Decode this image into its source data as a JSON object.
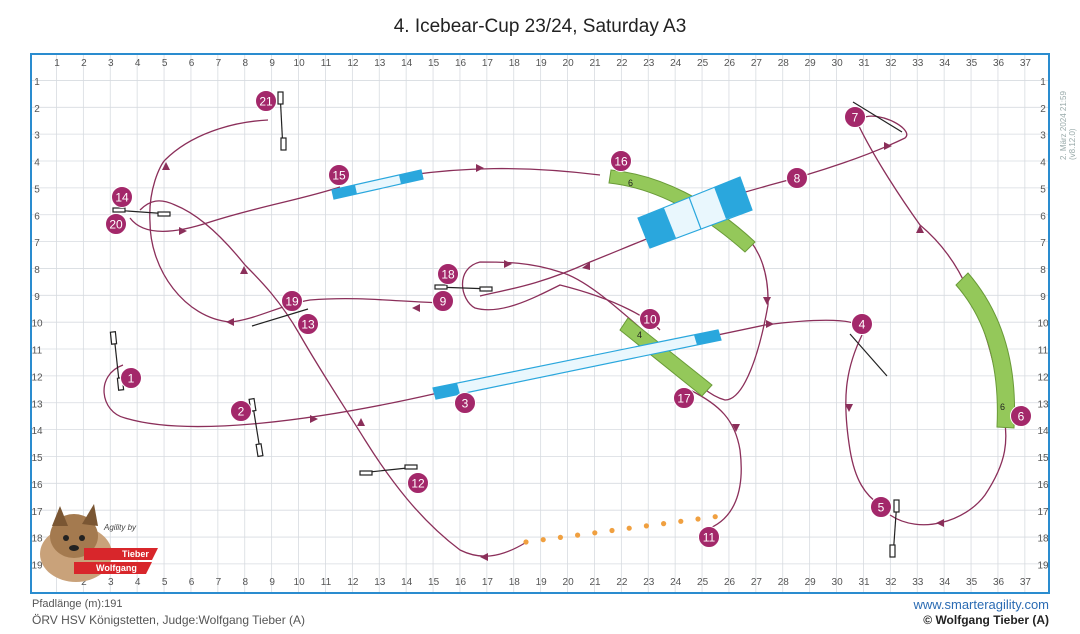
{
  "title": "4. Icebear-Cup 23/24, Saturday A3",
  "grid": {
    "cols": 37,
    "rows": 19,
    "top_labels": [
      "1",
      "2",
      "3",
      "4",
      "5",
      "6",
      "7",
      "8",
      "9",
      "10",
      "11",
      "12",
      "13",
      "14",
      "15",
      "16",
      "17",
      "18",
      "19",
      "20",
      "21",
      "22",
      "23",
      "24",
      "25",
      "26",
      "27",
      "28",
      "29",
      "30",
      "31",
      "32",
      "33",
      "34",
      "35",
      "36",
      "37"
    ],
    "side_labels": [
      "1",
      "2",
      "3",
      "4",
      "5",
      "6",
      "7",
      "8",
      "9",
      "10",
      "11",
      "12",
      "13",
      "14",
      "15",
      "16",
      "17",
      "18",
      "19"
    ]
  },
  "colors": {
    "border": "#2a8ccf",
    "grid": "#d7dbe0",
    "path": "#8b2f5a",
    "marker": "#a3286a",
    "tunnel": "#94c85a",
    "dogwalk": "#2aa7dd",
    "weave": "#f0a040"
  },
  "markers": [
    "1",
    "2",
    "3",
    "4",
    "5",
    "6",
    "7",
    "8",
    "9",
    "10",
    "11",
    "12",
    "13",
    "14",
    "15",
    "16",
    "17",
    "18",
    "19",
    "20",
    "21"
  ],
  "tunnel_labels": {
    "t16": "6",
    "t10": "4",
    "t6": "6"
  },
  "footer": {
    "path_length": "Pfadlänge (m):191",
    "club": "ÖRV HSV Königstetten, Judge:Wolfgang Tieber (A)",
    "website": "www.smarteragility.com",
    "copyright": "© Wolfgang Tieber (A)",
    "timestamp": "2. März 2024 21:59 (v8.12.0)"
  },
  "logo": {
    "script": "Agility by",
    "name1": "Tieber",
    "name2": "Wolfgang"
  }
}
